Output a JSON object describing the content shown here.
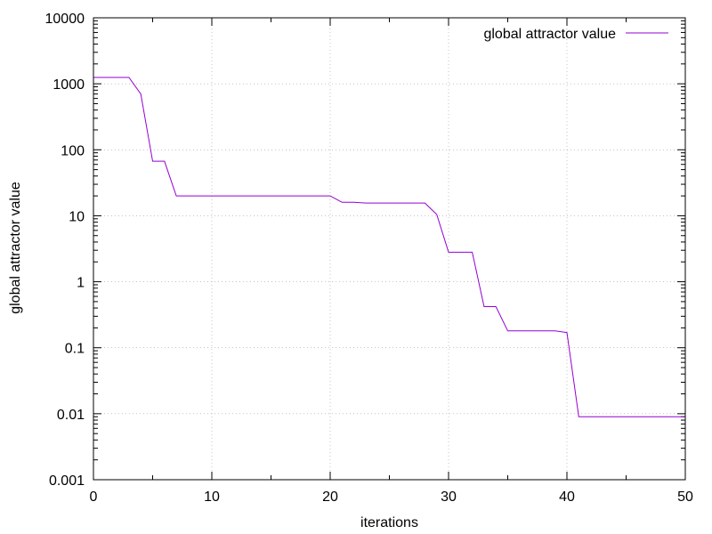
{
  "chart_data": {
    "type": "line",
    "xlabel": "iterations",
    "ylabel": "global attractor value",
    "xlim": [
      0,
      50
    ],
    "ylim": [
      0.001,
      10000
    ],
    "y_scale": "log",
    "grid": true,
    "legend_position": "top-right",
    "x_ticks": [
      "0",
      "10",
      "20",
      "30",
      "40",
      "50"
    ],
    "y_ticks": [
      "0.001",
      "0.01",
      "0.1",
      "1",
      "10",
      "100",
      "1000",
      "10000"
    ],
    "series": [
      {
        "name": "global attractor value",
        "color": "#9400d3",
        "x": [
          0,
          1,
          2,
          3,
          4,
          5,
          6,
          7,
          8,
          9,
          10,
          11,
          12,
          13,
          14,
          15,
          16,
          17,
          18,
          19,
          20,
          21,
          22,
          23,
          24,
          25,
          26,
          27,
          28,
          29,
          30,
          31,
          32,
          33,
          34,
          35,
          36,
          37,
          38,
          39,
          40,
          41,
          42,
          43,
          44,
          45,
          46,
          47,
          48,
          49,
          50
        ],
        "y": [
          1250,
          1250,
          1250,
          1250,
          700,
          67,
          67,
          20,
          20,
          20,
          20,
          20,
          20,
          20,
          20,
          20,
          20,
          20,
          20,
          20,
          20,
          16,
          16,
          15.6,
          15.6,
          15.6,
          15.6,
          15.6,
          15.6,
          10.5,
          2.8,
          2.8,
          2.8,
          0.42,
          0.42,
          0.18,
          0.18,
          0.18,
          0.18,
          0.18,
          0.17,
          0.009,
          0.009,
          0.009,
          0.009,
          0.009,
          0.009,
          0.009,
          0.009,
          0.009,
          0.009
        ]
      }
    ]
  }
}
